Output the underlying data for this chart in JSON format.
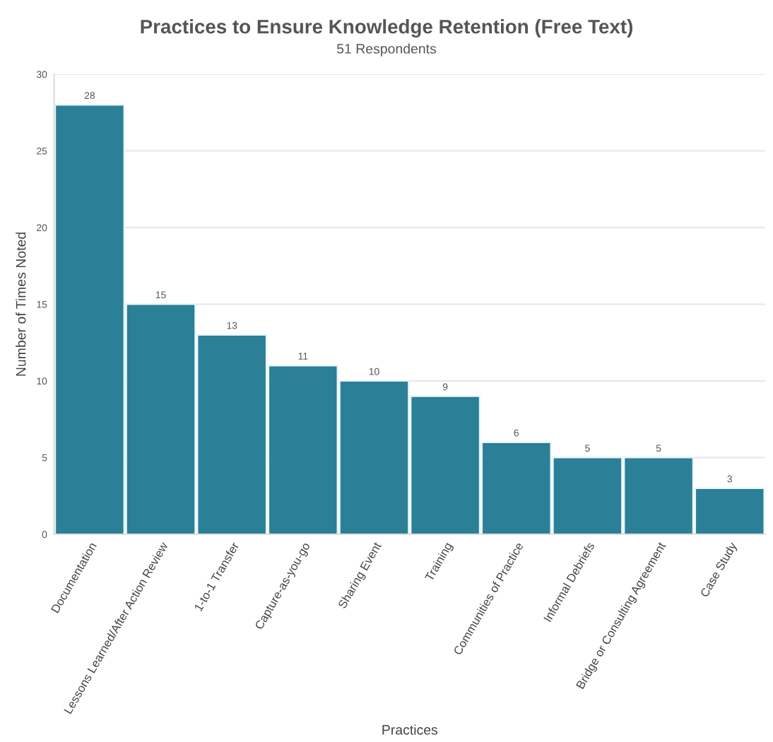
{
  "chart_data": {
    "type": "bar",
    "title": "Practices to Ensure Knowledge Retention (Free Text)",
    "subtitle": "51 Respondents",
    "xlabel": "Practices",
    "ylabel": "Number of Times Noted",
    "categories": [
      "Documentation",
      "Lessons Learned/After Action Review",
      "1-to-1 Transfer",
      "Capture-as-you-go",
      "Sharing Event",
      "Training",
      "Communities of Practice",
      "Informal Debriefs",
      "Bridge or Consulting Agreement",
      "Case Study"
    ],
    "values": [
      28,
      15,
      13,
      11,
      10,
      9,
      6,
      5,
      5,
      3
    ],
    "color": "#2b7f97",
    "ylim": [
      0,
      30
    ],
    "yticks": [
      0,
      5,
      10,
      15,
      20,
      25,
      30
    ],
    "grid": "y",
    "data_labels": true
  }
}
